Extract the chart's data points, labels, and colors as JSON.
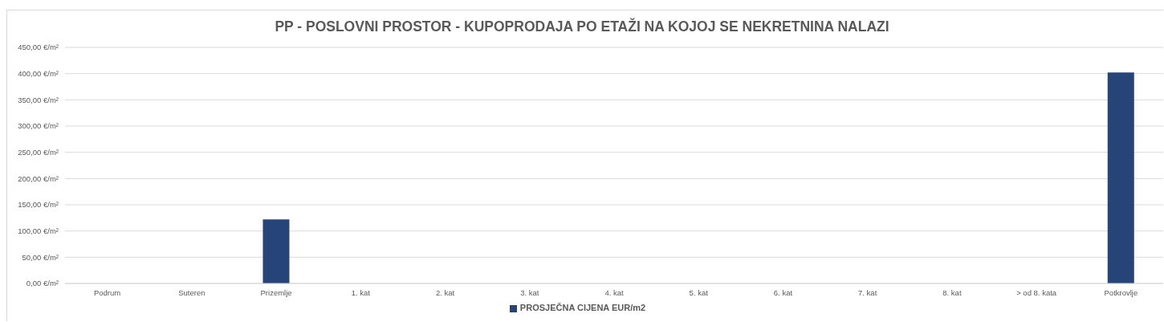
{
  "chart_data": {
    "type": "bar",
    "title": "PP - POSLOVNI PROSTOR - KUPOPRODAJA PO ETAŽI NA KOJOJ SE NEKRETNINA NALAZI",
    "categories": [
      "Podrum",
      "Suteren",
      "Prizemlje",
      "1. kat",
      "2. kat",
      "3. kat",
      "4. kat",
      "5. kat",
      "6. kat",
      "7. kat",
      "8. kat",
      "> od 8. kata",
      "Potkrovlje"
    ],
    "series": [
      {
        "name": "PROSJEČNA CIJENA EUR/m2",
        "color": "#264478",
        "values": [
          null,
          null,
          122,
          null,
          null,
          null,
          null,
          null,
          null,
          null,
          null,
          null,
          402
        ]
      }
    ],
    "ylim": [
      0,
      450
    ],
    "yticks": [
      {
        "value": 0,
        "label": "0,00 €/m²"
      },
      {
        "value": 50,
        "label": "50,00 €/m²"
      },
      {
        "value": 100,
        "label": "100,00 €/m²"
      },
      {
        "value": 150,
        "label": "150,00 €/m²"
      },
      {
        "value": 200,
        "label": "200,00 €/m²"
      },
      {
        "value": 250,
        "label": "250,00 €/m²"
      },
      {
        "value": 300,
        "label": "300,00 €/m²"
      },
      {
        "value": 350,
        "label": "350,00 €/m²"
      },
      {
        "value": 400,
        "label": "400,00 €/m²"
      },
      {
        "value": 450,
        "label": "450,00 €/m²"
      }
    ],
    "grid": "y",
    "legend": "bottom"
  }
}
